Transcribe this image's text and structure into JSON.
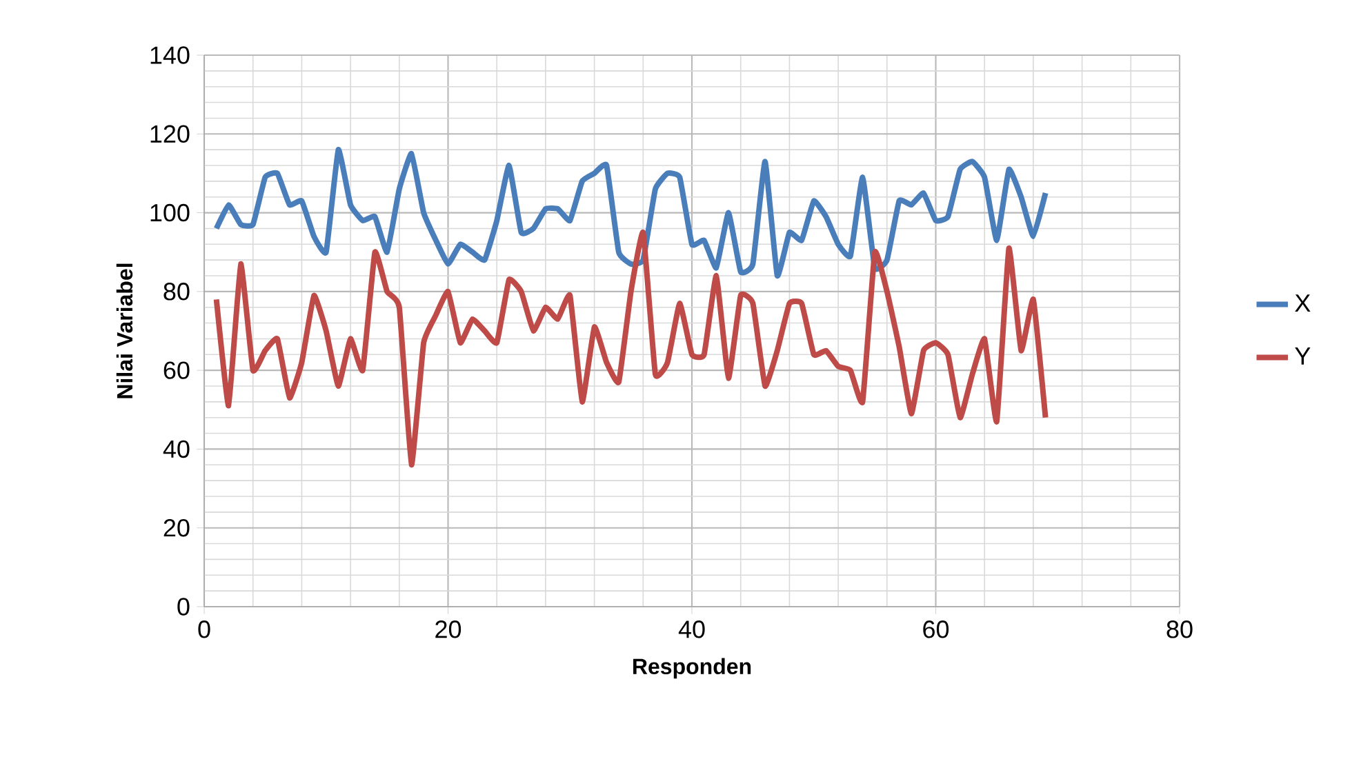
{
  "chart_data": {
    "type": "line",
    "xlabel": "Responden",
    "ylabel": "Nilai Variabel",
    "x": [
      1,
      2,
      3,
      4,
      5,
      6,
      7,
      8,
      9,
      10,
      11,
      12,
      13,
      14,
      15,
      16,
      17,
      18,
      19,
      20,
      21,
      22,
      23,
      24,
      25,
      26,
      27,
      28,
      29,
      30,
      31,
      32,
      33,
      34,
      35,
      36,
      37,
      38,
      39,
      40,
      41,
      42,
      43,
      44,
      45,
      46,
      47,
      48,
      49,
      50,
      51,
      52,
      53,
      54,
      55,
      56,
      57,
      58,
      59,
      60,
      61,
      62,
      63,
      64,
      65,
      66,
      67,
      68,
      69
    ],
    "series": [
      {
        "name": "X",
        "color": "#4a7ebb",
        "values": [
          96,
          102,
          97,
          97,
          109,
          110,
          102,
          103,
          94,
          90,
          116,
          102,
          98,
          99,
          90,
          106,
          115,
          100,
          93,
          87,
          92,
          90,
          88,
          98,
          112,
          95,
          96,
          101,
          101,
          98,
          108,
          110,
          112,
          90,
          87,
          88,
          106,
          110,
          109,
          92,
          93,
          86,
          100,
          85,
          87,
          113,
          84,
          95,
          93,
          103,
          99,
          92,
          89,
          109,
          86,
          88,
          103,
          102,
          105,
          98,
          99,
          111,
          113,
          109,
          93,
          111,
          104,
          94,
          105
        ]
      },
      {
        "name": "Y",
        "color": "#be4b48",
        "values": [
          78,
          51,
          87,
          60,
          65,
          68,
          53,
          62,
          79,
          70,
          56,
          68,
          60,
          90,
          80,
          76,
          36,
          67,
          74,
          80,
          67,
          73,
          70,
          67,
          83,
          80,
          70,
          76,
          73,
          79,
          52,
          71,
          62,
          57,
          80,
          95,
          59,
          62,
          77,
          64,
          64,
          84,
          58,
          79,
          77,
          56,
          65,
          77,
          77,
          64,
          65,
          61,
          60,
          52,
          90,
          80,
          66,
          49,
          65,
          67,
          64,
          48,
          59,
          68,
          47,
          91,
          65,
          78,
          48
        ]
      }
    ],
    "xlim": [
      0,
      80
    ],
    "xticks": [
      0,
      20,
      40,
      60,
      80
    ],
    "ylim": [
      0,
      140
    ],
    "yticks": [
      0,
      20,
      40,
      60,
      80,
      100,
      120,
      140
    ],
    "grid": true,
    "legend": "right"
  }
}
